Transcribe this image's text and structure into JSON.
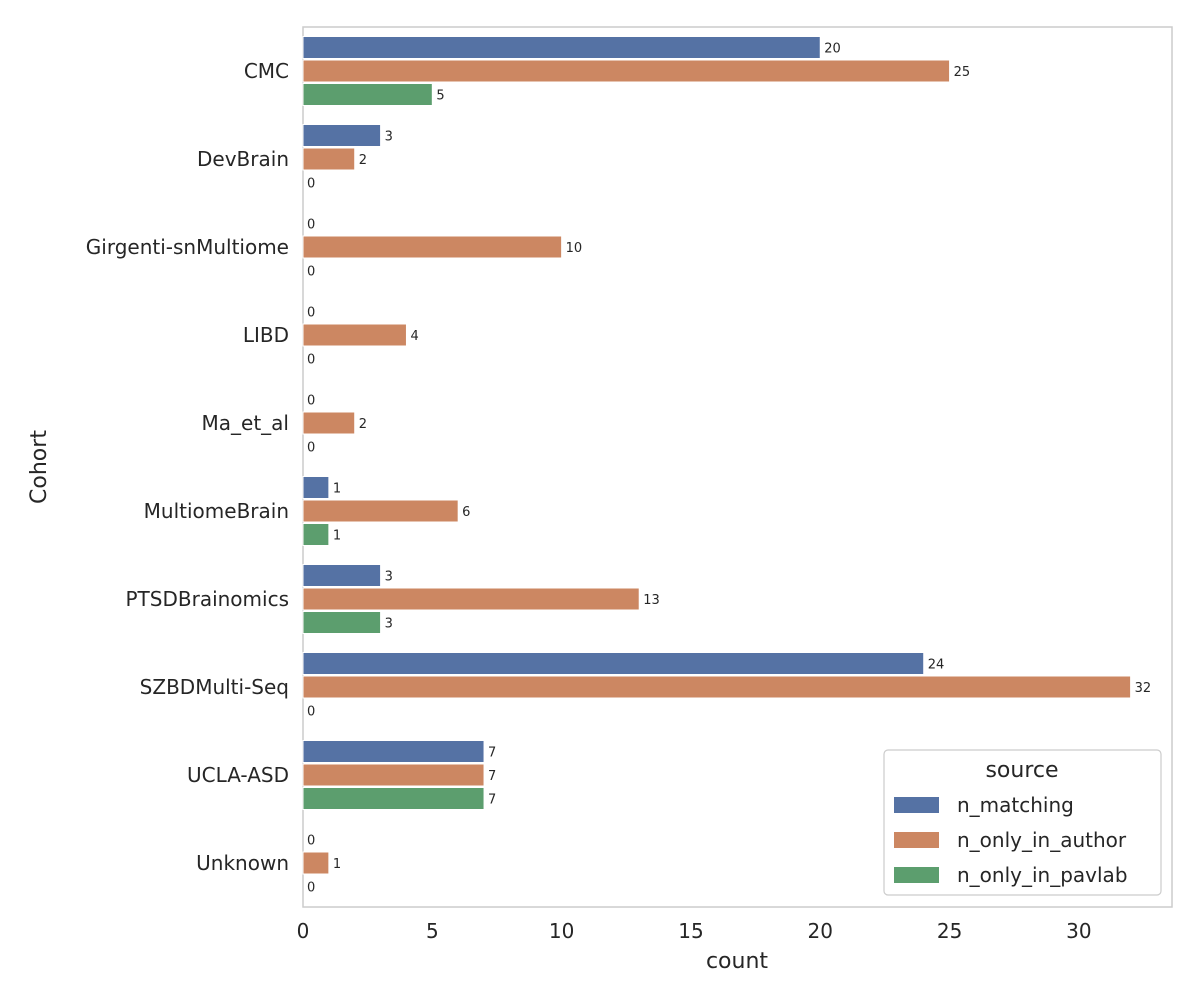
{
  "chart_data": {
    "type": "bar",
    "orientation": "horizontal",
    "categories": [
      "CMC",
      "DevBrain",
      "Girgenti-snMultiome",
      "LIBD",
      "Ma_et_al",
      "MultiomeBrain",
      "PTSDBrainomics",
      "SZBDMulti-Seq",
      "UCLA-ASD",
      "Unknown"
    ],
    "series": [
      {
        "name": "n_matching",
        "color": "#5572a4",
        "values": [
          20,
          3,
          0,
          0,
          0,
          1,
          3,
          24,
          7,
          0
        ]
      },
      {
        "name": "n_only_in_author",
        "color": "#cc8762",
        "values": [
          25,
          2,
          10,
          4,
          2,
          6,
          13,
          32,
          7,
          1
        ]
      },
      {
        "name": "n_only_in_pavlab",
        "color": "#5c9e6e",
        "values": [
          5,
          0,
          0,
          0,
          0,
          1,
          3,
          0,
          7,
          0
        ]
      }
    ],
    "xlabel": "count",
    "ylabel": "Cohort",
    "xticks": [
      0,
      5,
      10,
      15,
      20,
      25,
      30
    ],
    "xlim": [
      0,
      33.6
    ],
    "legend": {
      "title": "source",
      "position": "lower-right"
    },
    "grid": false
  }
}
